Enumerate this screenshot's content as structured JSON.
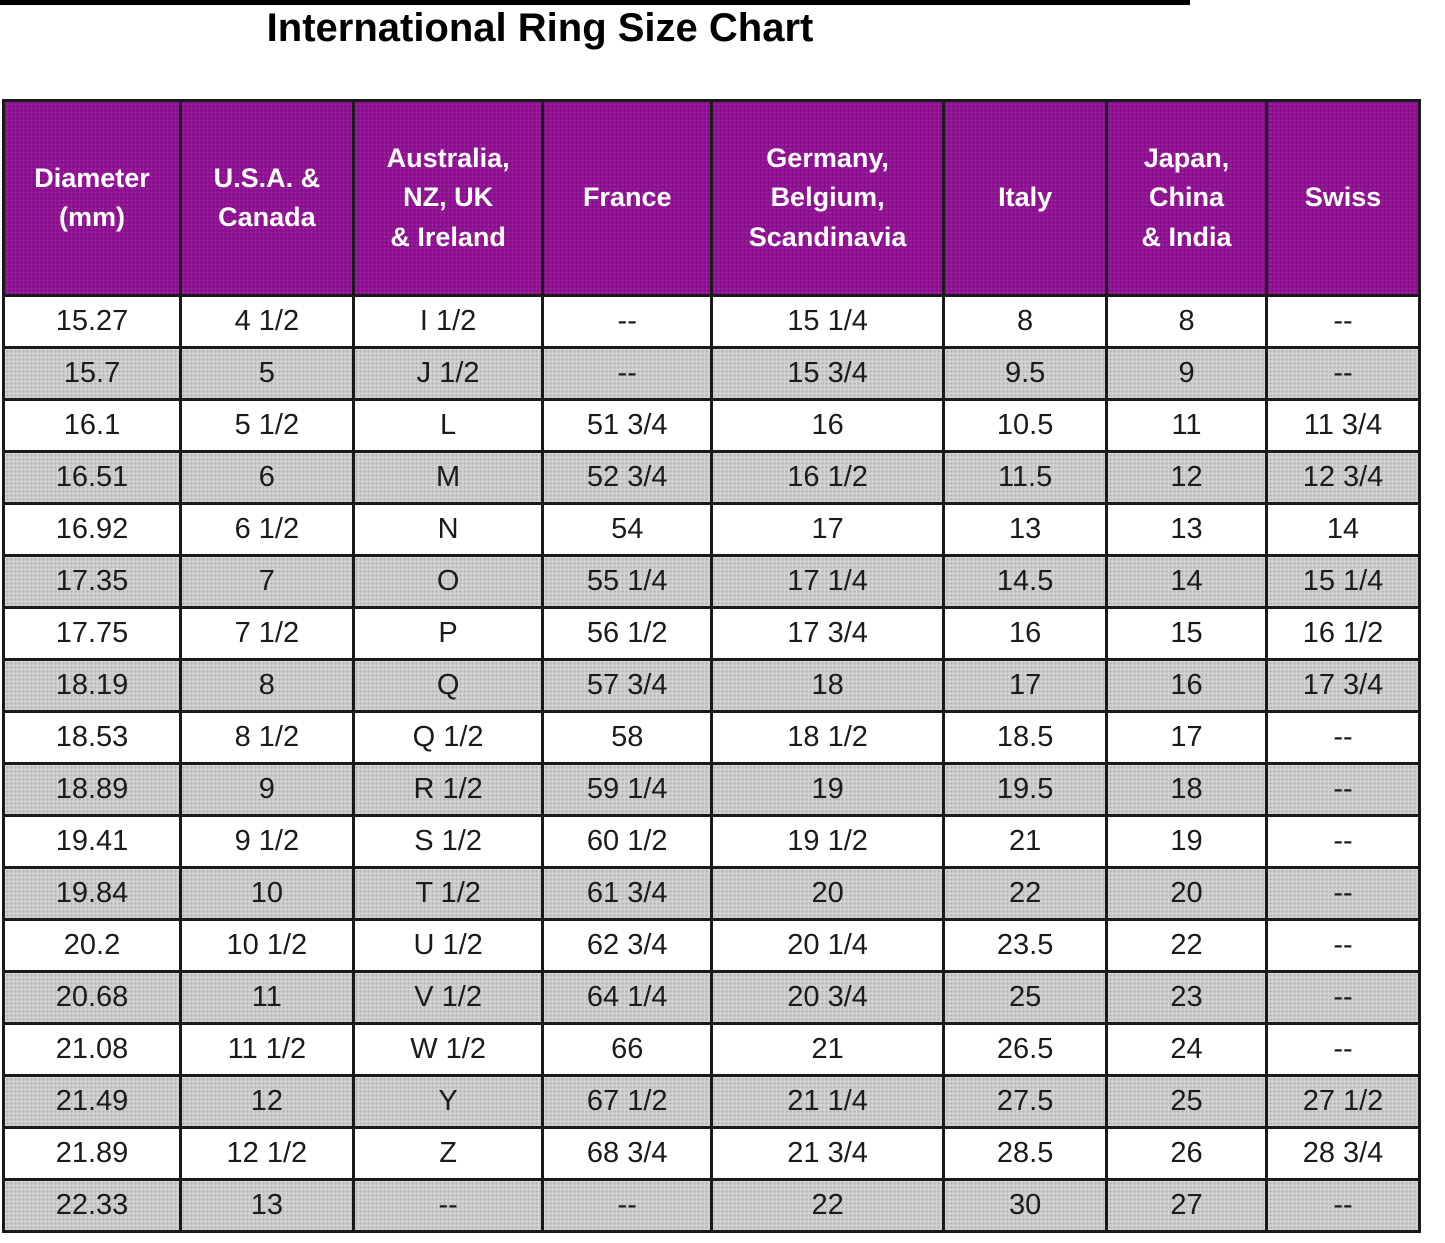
{
  "title": "International Ring Size Chart",
  "colors": {
    "header_bg": "#8B0E8E",
    "header_text": "#ffffff",
    "row_alt_bg": "#d3d3d3",
    "grid": "#1a1a1a",
    "title_text": "#000000"
  },
  "chart_data": {
    "type": "table",
    "title": "International Ring Size Chart",
    "columns": [
      {
        "id": "diameter-mm",
        "label": "Diameter\n(mm)"
      },
      {
        "id": "usa-canada",
        "label": "U.S.A. &\nCanada"
      },
      {
        "id": "australia-nz-uk-ireland",
        "label": "Australia,\nNZ, UK\n& Ireland"
      },
      {
        "id": "france",
        "label": "France"
      },
      {
        "id": "germany-belgium-scandinavia",
        "label": "Germany,\nBelgium,\nScandinavia"
      },
      {
        "id": "italy",
        "label": "Italy"
      },
      {
        "id": "japan-china-india",
        "label": "Japan,\nChina\n& India"
      },
      {
        "id": "swiss",
        "label": "Swiss"
      }
    ],
    "col_widths_pct": [
      12.5,
      12.2,
      13.4,
      11.9,
      16.4,
      11.5,
      11.3,
      10.8
    ],
    "rows": [
      [
        "15.27",
        "4 1/2",
        "I 1/2",
        "--",
        "15 1/4",
        "8",
        "8",
        "--"
      ],
      [
        "15.7",
        "5",
        "J 1/2",
        "--",
        "15 3/4",
        "9.5",
        "9",
        "--"
      ],
      [
        "16.1",
        "5 1/2",
        "L",
        "51 3/4",
        "16",
        "10.5",
        "11",
        "11 3/4"
      ],
      [
        "16.51",
        "6",
        "M",
        "52 3/4",
        "16 1/2",
        "11.5",
        "12",
        "12 3/4"
      ],
      [
        "16.92",
        "6 1/2",
        "N",
        "54",
        "17",
        "13",
        "13",
        "14"
      ],
      [
        "17.35",
        "7",
        "O",
        "55 1/4",
        "17 1/4",
        "14.5",
        "14",
        "15 1/4"
      ],
      [
        "17.75",
        "7 1/2",
        "P",
        "56 1/2",
        "17 3/4",
        "16",
        "15",
        "16 1/2"
      ],
      [
        "18.19",
        "8",
        "Q",
        "57 3/4",
        "18",
        "17",
        "16",
        "17 3/4"
      ],
      [
        "18.53",
        "8 1/2",
        "Q 1/2",
        "58",
        "18 1/2",
        "18.5",
        "17",
        "--"
      ],
      [
        "18.89",
        "9",
        "R 1/2",
        "59 1/4",
        "19",
        "19.5",
        "18",
        "--"
      ],
      [
        "19.41",
        "9 1/2",
        "S 1/2",
        "60 1/2",
        "19 1/2",
        "21",
        "19",
        "--"
      ],
      [
        "19.84",
        "10",
        "T 1/2",
        "61 3/4",
        "20",
        "22",
        "20",
        "--"
      ],
      [
        "20.2",
        "10 1/2",
        "U 1/2",
        "62 3/4",
        "20 1/4",
        "23.5",
        "22",
        "--"
      ],
      [
        "20.68",
        "11",
        "V 1/2",
        "64 1/4",
        "20 3/4",
        "25",
        "23",
        "--"
      ],
      [
        "21.08",
        "11 1/2",
        "W 1/2",
        "66",
        "21",
        "26.5",
        "24",
        "--"
      ],
      [
        "21.49",
        "12",
        "Y",
        "67 1/2",
        "21 1/4",
        "27.5",
        "25",
        "27 1/2"
      ],
      [
        "21.89",
        "12 1/2",
        "Z",
        "68 3/4",
        "21 3/4",
        "28.5",
        "26",
        "28 3/4"
      ],
      [
        "22.33",
        "13",
        "--",
        "--",
        "22",
        "30",
        "27",
        "--"
      ]
    ],
    "layout_hints": {
      "header_style": "purple background, white bold text, centered",
      "row_striping": "odd rows white, even rows dotted light gray",
      "grid": "heavy black lines"
    }
  }
}
